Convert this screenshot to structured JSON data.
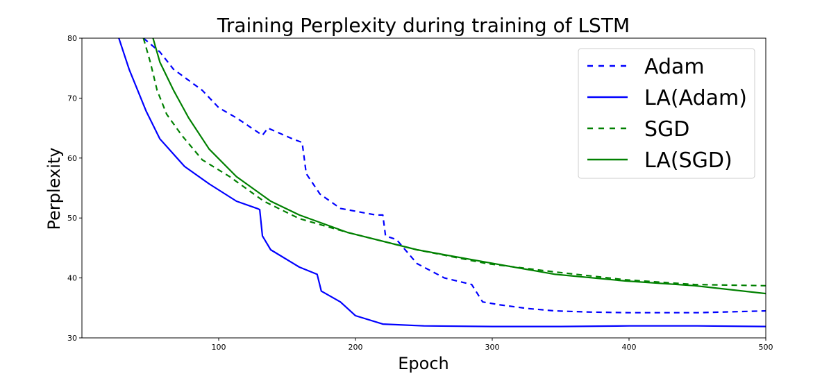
{
  "chart_data": {
    "type": "line",
    "title": "Training Perplexity during training of LSTM",
    "xlabel": "Epoch",
    "ylabel": "Perplexity",
    "xlim": [
      0,
      500
    ],
    "ylim": [
      30,
      80
    ],
    "xticks": [
      100,
      200,
      300,
      400,
      500
    ],
    "yticks": [
      30,
      40,
      50,
      60,
      70,
      80
    ],
    "grid": false,
    "legend_position": "top-right",
    "series": [
      {
        "name": "Adam",
        "color": "#0000ff",
        "dash": "dashed",
        "x": [
          45,
          57,
          67,
          88,
          100,
          113,
          132,
          136,
          154,
          161,
          164,
          174,
          189,
          215,
          220,
          222,
          230,
          245,
          265,
          285,
          293,
          306,
          326,
          346,
          372,
          400,
          450,
          500
        ],
        "y": [
          80,
          77.7,
          74.8,
          71.3,
          68.4,
          66.7,
          63.8,
          65,
          63.2,
          62.6,
          57.4,
          54,
          51.6,
          50.5,
          50.5,
          47,
          46.4,
          42.4,
          40,
          38.9,
          36,
          35.5,
          34.9,
          34.5,
          34.3,
          34.2,
          34.2,
          34.5
        ]
      },
      {
        "name": "LA(Adam)",
        "color": "#0000ff",
        "dash": "solid",
        "x": [
          27,
          34.5,
          47,
          57,
          75,
          93,
          113,
          128,
          130,
          132,
          138,
          159,
          172,
          175,
          189,
          200,
          220,
          250,
          300,
          350,
          400,
          450,
          500
        ],
        "y": [
          80,
          74.8,
          67.8,
          63.2,
          58.6,
          55.7,
          52.8,
          51.6,
          51.4,
          47,
          44.7,
          41.8,
          40.6,
          37.8,
          36,
          33.7,
          32.3,
          32,
          31.9,
          31.9,
          32,
          32,
          31.9
        ]
      },
      {
        "name": "SGD",
        "color": "#008000",
        "dash": "dashed",
        "x": [
          45,
          50,
          55,
          62,
          73,
          88,
          108,
          133,
          159,
          194,
          245,
          296,
          346,
          397,
          448,
          500
        ],
        "y": [
          80,
          76,
          71.3,
          67.3,
          63.8,
          59.7,
          56.9,
          52.8,
          49.9,
          47.6,
          44.7,
          42.4,
          41,
          39.7,
          38.9,
          38.7
        ]
      },
      {
        "name": "LA(SGD)",
        "color": "#008000",
        "dash": "solid",
        "x": [
          52,
          57,
          67,
          78,
          93,
          113,
          138,
          159,
          194,
          245,
          296,
          346,
          397,
          448,
          500
        ],
        "y": [
          80,
          76,
          71.3,
          66.7,
          61.5,
          56.9,
          52.8,
          50.5,
          47.6,
          44.7,
          42.6,
          40.6,
          39.5,
          38.7,
          37.4
        ]
      }
    ]
  }
}
